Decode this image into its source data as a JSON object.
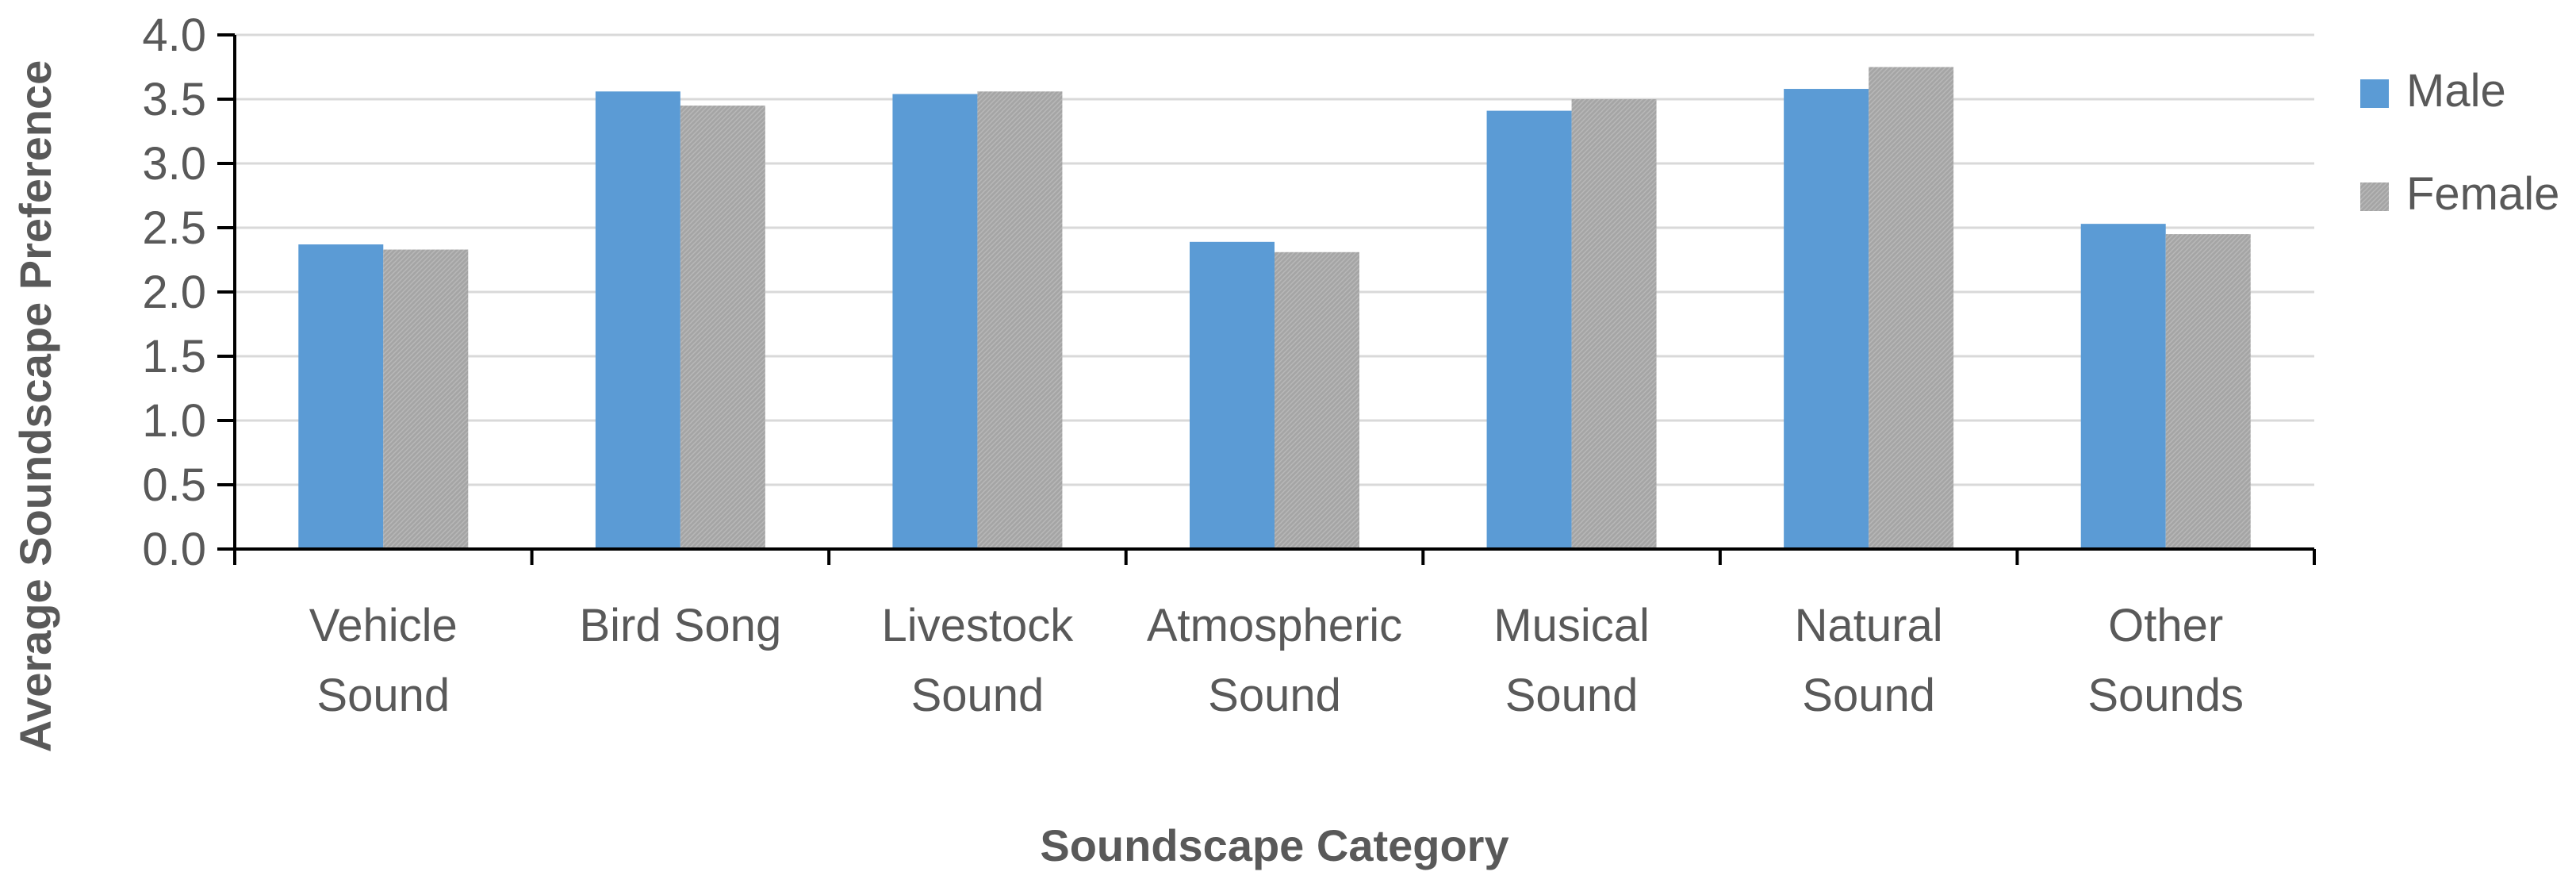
{
  "chart_data": {
    "type": "bar",
    "title": "",
    "xlabel": "Soundscape Category",
    "ylabel": "Average Soundscape Preference",
    "ylim": [
      0,
      4.0
    ],
    "yticks": [
      "0.0",
      "0.5",
      "1.0",
      "1.5",
      "2.0",
      "2.5",
      "3.0",
      "3.5",
      "4.0"
    ],
    "grid": true,
    "legend_position": "right",
    "categories": [
      [
        "Vehicle",
        "Sound"
      ],
      [
        "Bird Song"
      ],
      [
        "Livestock",
        "Sound"
      ],
      [
        "Atmospheric",
        "Sound"
      ],
      [
        "Musical",
        "Sound"
      ],
      [
        "Natural",
        "Sound"
      ],
      [
        "Other",
        "Sounds"
      ]
    ],
    "series": [
      {
        "name": "Male",
        "color": "#5b9bd5",
        "values": [
          2.37,
          3.56,
          3.54,
          2.39,
          3.41,
          3.58,
          2.53
        ]
      },
      {
        "name": "Female",
        "color": "#a5a5a5",
        "values": [
          2.33,
          3.45,
          3.56,
          2.31,
          3.5,
          3.75,
          2.45
        ]
      }
    ]
  }
}
